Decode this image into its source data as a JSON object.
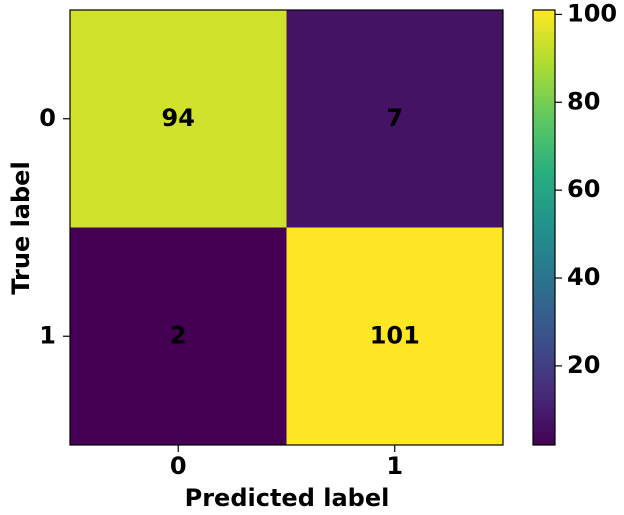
{
  "chart_data": {
    "type": "heatmap",
    "x_label": "Predicted label",
    "y_label": "True label",
    "x_categories": [
      "0",
      "1"
    ],
    "y_categories": [
      "0",
      "1"
    ],
    "values": [
      [
        94,
        7
      ],
      [
        2,
        101
      ]
    ],
    "colormap": "viridis",
    "colorbar": {
      "lim": [
        2,
        101
      ],
      "ticks": [
        20,
        40,
        60,
        80,
        100
      ]
    }
  }
}
